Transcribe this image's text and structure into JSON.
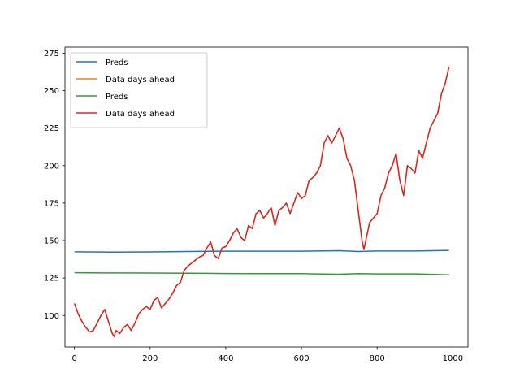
{
  "chart_data": {
    "type": "line",
    "title": "",
    "xlabel": "",
    "ylabel": "",
    "xlim": [
      -25,
      1040
    ],
    "ylim": [
      79,
      279
    ],
    "xticks": [
      0,
      200,
      400,
      600,
      800,
      1000
    ],
    "yticks": [
      100,
      125,
      150,
      175,
      200,
      225,
      250,
      275
    ],
    "grid": false,
    "legend_position": "upper-left",
    "series": [
      {
        "name": "Preds",
        "color": "#1f77b4",
        "x": [
          0,
          100,
          200,
          300,
          400,
          500,
          600,
          700,
          750,
          800,
          900,
          990
        ],
        "y": [
          142.5,
          142.3,
          142.4,
          142.7,
          142.9,
          142.9,
          142.9,
          143.2,
          142.7,
          143.0,
          143.0,
          143.4
        ]
      },
      {
        "name": "Data days ahead",
        "color": "#ff7f0e",
        "x": [
          0,
          10,
          20,
          30,
          40,
          50,
          60,
          70,
          80,
          90,
          100,
          105,
          110,
          120,
          130,
          140,
          150,
          160,
          170,
          180,
          190,
          200,
          210,
          220,
          230,
          240,
          250,
          260,
          270,
          280,
          290,
          300,
          310,
          320,
          330,
          340,
          350,
          360,
          370,
          380,
          390,
          400,
          410,
          420,
          430,
          440,
          450,
          460,
          470,
          480,
          490,
          500,
          510,
          520,
          530,
          540,
          550,
          560,
          570,
          580,
          590,
          600,
          610,
          620,
          630,
          640,
          650,
          660,
          670,
          680,
          690,
          700,
          710,
          720,
          730,
          740,
          745,
          750,
          755,
          760,
          765,
          770,
          780,
          790,
          800,
          810,
          820,
          830,
          840,
          850,
          860,
          870,
          880,
          890,
          900,
          910,
          920,
          930,
          940,
          950,
          960,
          970,
          980,
          990
        ],
        "y": [
          108,
          101,
          96,
          92,
          89,
          90,
          95,
          100,
          104,
          96,
          88,
          86,
          90,
          88,
          92,
          94,
          90,
          95,
          101,
          104,
          106,
          104,
          110,
          112,
          105,
          108,
          111,
          115,
          120,
          122,
          130,
          133,
          135,
          137,
          139,
          140,
          145,
          149,
          140,
          138,
          145,
          146,
          150,
          155,
          158,
          152,
          150,
          160,
          158,
          168,
          170,
          165,
          168,
          172,
          160,
          170,
          172,
          175,
          168,
          175,
          182,
          178,
          180,
          190,
          192,
          195,
          200,
          215,
          220,
          215,
          220,
          225,
          218,
          205,
          200,
          190,
          180,
          170,
          160,
          150,
          144,
          150,
          162,
          165,
          168,
          180,
          185,
          195,
          200,
          208,
          190,
          180,
          200,
          198,
          195,
          210,
          205,
          215,
          225,
          230,
          235,
          248,
          255,
          266
        ]
      },
      {
        "name": "Preds",
        "color": "#2ca02c",
        "x": [
          0,
          100,
          200,
          300,
          400,
          500,
          600,
          700,
          750,
          800,
          900,
          990
        ],
        "y": [
          128.5,
          128.4,
          128.3,
          128.2,
          128.0,
          127.9,
          127.9,
          127.5,
          127.9,
          127.7,
          127.7,
          127.1
        ]
      },
      {
        "name": "Data days ahead",
        "color": "#d62728",
        "x": [
          0,
          10,
          20,
          30,
          40,
          50,
          60,
          70,
          80,
          90,
          100,
          105,
          110,
          120,
          130,
          140,
          150,
          160,
          170,
          180,
          190,
          200,
          210,
          220,
          230,
          240,
          250,
          260,
          270,
          280,
          290,
          300,
          310,
          320,
          330,
          340,
          350,
          360,
          370,
          380,
          390,
          400,
          410,
          420,
          430,
          440,
          450,
          460,
          470,
          480,
          490,
          500,
          510,
          520,
          530,
          540,
          550,
          560,
          570,
          580,
          590,
          600,
          610,
          620,
          630,
          640,
          650,
          660,
          670,
          680,
          690,
          700,
          710,
          720,
          730,
          740,
          745,
          750,
          755,
          760,
          765,
          770,
          780,
          790,
          800,
          810,
          820,
          830,
          840,
          850,
          860,
          870,
          880,
          890,
          900,
          910,
          920,
          930,
          940,
          950,
          960,
          970,
          980,
          990
        ],
        "y": [
          108,
          101,
          96,
          92,
          89,
          90,
          95,
          100,
          104,
          96,
          88,
          86,
          90,
          88,
          92,
          94,
          90,
          95,
          101,
          104,
          106,
          104,
          110,
          112,
          105,
          108,
          111,
          115,
          120,
          122,
          130,
          133,
          135,
          137,
          139,
          140,
          145,
          149,
          140,
          138,
          145,
          146,
          150,
          155,
          158,
          152,
          150,
          160,
          158,
          168,
          170,
          165,
          168,
          172,
          160,
          170,
          172,
          175,
          168,
          175,
          182,
          178,
          180,
          190,
          192,
          195,
          200,
          215,
          220,
          215,
          220,
          225,
          218,
          205,
          200,
          190,
          180,
          170,
          160,
          150,
          144,
          150,
          162,
          165,
          168,
          180,
          185,
          195,
          200,
          208,
          190,
          180,
          200,
          198,
          195,
          210,
          205,
          215,
          225,
          230,
          235,
          248,
          255,
          266
        ]
      }
    ]
  }
}
